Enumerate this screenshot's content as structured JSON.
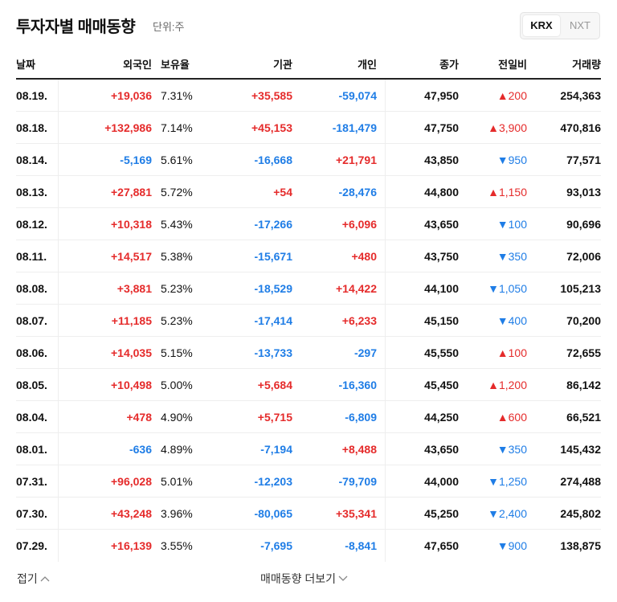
{
  "header": {
    "title": "투자자별 매매동향",
    "unit": "단위:주",
    "tabs": [
      "KRX",
      "NXT"
    ]
  },
  "table": {
    "columns": [
      "날짜",
      "외국인",
      "보유율",
      "기관",
      "개인",
      "종가",
      "전일비",
      "거래량"
    ],
    "rows": [
      [
        "08.19.",
        "+19,036",
        "7.31%",
        "+35,585",
        "-59,074",
        "47,950",
        "▲200",
        "254,363"
      ],
      [
        "08.18.",
        "+132,986",
        "7.14%",
        "+45,153",
        "-181,479",
        "47,750",
        "▲3,900",
        "470,816"
      ],
      [
        "08.14.",
        "-5,169",
        "5.61%",
        "-16,668",
        "+21,791",
        "43,850",
        "▼950",
        "77,571"
      ],
      [
        "08.13.",
        "+27,881",
        "5.72%",
        "+54",
        "-28,476",
        "44,800",
        "▲1,150",
        "93,013"
      ],
      [
        "08.12.",
        "+10,318",
        "5.43%",
        "-17,266",
        "+6,096",
        "43,650",
        "▼100",
        "90,696"
      ],
      [
        "08.11.",
        "+14,517",
        "5.38%",
        "-15,671",
        "+480",
        "43,750",
        "▼350",
        "72,006"
      ],
      [
        "08.08.",
        "+3,881",
        "5.23%",
        "-18,529",
        "+14,422",
        "44,100",
        "▼1,050",
        "105,213"
      ],
      [
        "08.07.",
        "+11,185",
        "5.23%",
        "-17,414",
        "+6,233",
        "45,150",
        "▼400",
        "70,200"
      ],
      [
        "08.06.",
        "+14,035",
        "5.15%",
        "-13,733",
        "-297",
        "45,550",
        "▲100",
        "72,655"
      ],
      [
        "08.05.",
        "+10,498",
        "5.00%",
        "+5,684",
        "-16,360",
        "45,450",
        "▲1,200",
        "86,142"
      ],
      [
        "08.04.",
        "+478",
        "4.90%",
        "+5,715",
        "-6,809",
        "44,250",
        "▲600",
        "66,521"
      ],
      [
        "08.01.",
        "-636",
        "4.89%",
        "-7,194",
        "+8,488",
        "43,650",
        "▼350",
        "145,432"
      ],
      [
        "07.31.",
        "+96,028",
        "5.01%",
        "-12,203",
        "-79,709",
        "44,000",
        "▼1,250",
        "274,488"
      ],
      [
        "07.30.",
        "+43,248",
        "3.96%",
        "-80,065",
        "+35,341",
        "45,250",
        "▼2,400",
        "245,802"
      ],
      [
        "07.29.",
        "+16,139",
        "3.55%",
        "-7,695",
        "-8,841",
        "47,650",
        "▼900",
        "138,875"
      ]
    ]
  },
  "footer": {
    "collapse": "접기",
    "more": "매매동향 더보기"
  }
}
